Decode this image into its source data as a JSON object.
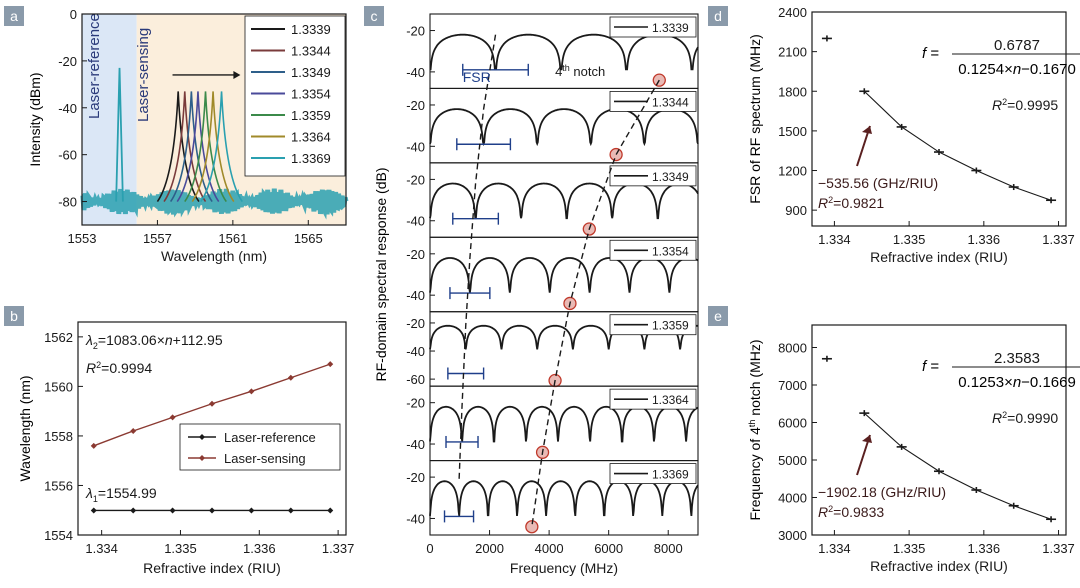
{
  "colors": {
    "panel_label_bg": "#8a9aaa",
    "ref_bg": "#dbe7f6",
    "sense_bg": "#fbeedc",
    "line_dark": "#1a1a1a",
    "fit_blue": "#2f5a8c",
    "sensing_red": "#8b3a32",
    "notch_circle": "#c0392b",
    "fsr_arrow": "#1f3f8a",
    "arrow_annot": "#5a2020"
  },
  "chart_data": [
    {
      "id": "a",
      "type": "line",
      "panel_label": "a",
      "xlabel": "Wavelength (nm)",
      "ylabel": "Intensity (dBm)",
      "xlim": [
        1553,
        1567
      ],
      "ylim": [
        -90,
        0
      ],
      "xticks": [
        1553,
        1557,
        1561,
        1565
      ],
      "yticks": [
        0,
        -20,
        -40,
        -60,
        -80
      ],
      "region_labels": [
        "Laser-reference",
        "Laser-sensing"
      ],
      "reference_peak": {
        "x": 1554.99,
        "y": -23
      },
      "noise_floor": -80,
      "legend": [
        {
          "name": "1.3339",
          "color": "#1a1a1a",
          "peak_x": 1558.1,
          "peak_y": -33
        },
        {
          "name": "1.3344",
          "color": "#7a3b3b",
          "peak_x": 1558.45,
          "peak_y": -33
        },
        {
          "name": "1.3349",
          "color": "#2e5f8a",
          "peak_x": 1558.8,
          "peak_y": -33
        },
        {
          "name": "1.3354",
          "color": "#4a4a9a",
          "peak_x": 1559.15,
          "peak_y": -33
        },
        {
          "name": "1.3359",
          "color": "#3b8a4a",
          "peak_x": 1559.55,
          "peak_y": -33
        },
        {
          "name": "1.3364",
          "color": "#a08a2a",
          "peak_x": 1559.95,
          "peak_y": -33
        },
        {
          "name": "1.3369",
          "color": "#2aa0b0",
          "peak_x": 1560.4,
          "peak_y": -33
        }
      ]
    },
    {
      "id": "b",
      "type": "line",
      "panel_label": "b",
      "xlabel": "Refractive index (RIU)",
      "ylabel": "Wavelength (nm)",
      "xlim": [
        1.3337,
        1.3371
      ],
      "ylim": [
        1554,
        1562.6
      ],
      "xticks": [
        "1.334",
        "1.335",
        "1.336",
        "1.337"
      ],
      "xtick_values": [
        1.334,
        1.335,
        1.336,
        1.337
      ],
      "yticks": [
        1554,
        1556,
        1558,
        1560,
        1562
      ],
      "x": [
        1.3339,
        1.3344,
        1.3349,
        1.3354,
        1.3359,
        1.3364,
        1.3369
      ],
      "series": [
        {
          "name": "Laser-reference",
          "values": [
            1554.99,
            1554.99,
            1554.99,
            1554.99,
            1554.99,
            1554.99,
            1554.99
          ],
          "color": "#1a1a1a"
        },
        {
          "name": "Laser-sensing",
          "values": [
            1557.6,
            1558.2,
            1558.75,
            1559.3,
            1559.8,
            1560.35,
            1560.9
          ],
          "color": "#8b3a32"
        }
      ],
      "annotations": {
        "fit_sensing": "λ2=1083.06×n+112.95",
        "r2_sensing": "R2=0.9994",
        "fit_reference": "λ1=1554.99"
      }
    },
    {
      "id": "c",
      "type": "line",
      "panel_label": "c",
      "xlabel": "Frequency (MHz)",
      "ylabel": "RF-domain spectral response (dB)",
      "xlim": [
        0,
        9000
      ],
      "xticks": [
        0,
        2000,
        4000,
        6000,
        8000
      ],
      "fsr_label": "FSR",
      "notch_label": "4th notch",
      "subplots": [
        {
          "name": "1.3339",
          "fsr": 2200,
          "notch4": 7700,
          "ylim": [
            -48,
            -12
          ],
          "yticks": [
            -20,
            -40
          ]
        },
        {
          "name": "1.3344",
          "fsr": 1800,
          "notch4": 6250,
          "ylim": [
            -48,
            -12
          ],
          "yticks": [
            -20,
            -40
          ]
        },
        {
          "name": "1.3349",
          "fsr": 1530,
          "notch4": 5350,
          "ylim": [
            -48,
            -12
          ],
          "yticks": [
            -20,
            -40
          ]
        },
        {
          "name": "1.3354",
          "fsr": 1340,
          "notch4": 4700,
          "ylim": [
            -48,
            -12
          ],
          "yticks": [
            -20,
            -40
          ]
        },
        {
          "name": "1.3359",
          "fsr": 1200,
          "notch4": 4200,
          "ylim": [
            -65,
            -12
          ],
          "yticks": [
            -20,
            -40,
            -60
          ]
        },
        {
          "name": "1.3364",
          "fsr": 1075,
          "notch4": 3780,
          "ylim": [
            -48,
            -12
          ],
          "yticks": [
            -20,
            -40
          ]
        },
        {
          "name": "1.3369",
          "fsr": 975,
          "notch4": 3420,
          "ylim": [
            -48,
            -12
          ],
          "yticks": [
            -20,
            -40
          ]
        }
      ]
    },
    {
      "id": "d",
      "type": "scatter",
      "panel_label": "d",
      "xlabel": "Refractive index (RIU)",
      "ylabel": "FSR of RF spectrum (MHz)",
      "xlim": [
        1.3337,
        1.3371
      ],
      "ylim": [
        780,
        2400
      ],
      "xticks": [
        "1.334",
        "1.335",
        "1.336",
        "1.337"
      ],
      "xtick_values": [
        1.334,
        1.335,
        1.336,
        1.337
      ],
      "yticks": [
        900,
        1200,
        1500,
        1800,
        2100,
        2400
      ],
      "x": [
        1.3339,
        1.3344,
        1.3349,
        1.3354,
        1.3359,
        1.3364,
        1.3369
      ],
      "values": [
        2200,
        1800,
        1530,
        1340,
        1200,
        1075,
        975
      ],
      "fit": {
        "a": 0.6787,
        "b": 0.1254,
        "c": 0.167
      },
      "formula": {
        "lhs": "f =",
        "numerator": "0.6787",
        "denominator": "0.1254×n−0.1670",
        "r2": "R2=0.9995"
      },
      "linear": {
        "slope_label": "−535.56 (GHz/RIU)",
        "r2": "R2=0.9821"
      }
    },
    {
      "id": "e",
      "type": "scatter",
      "panel_label": "e",
      "xlabel": "Refractive index (RIU)",
      "ylabel": "Frequency of 4th notch (MHz)",
      "xlim": [
        1.3337,
        1.3371
      ],
      "ylim": [
        3000,
        8600
      ],
      "xticks": [
        "1.334",
        "1.335",
        "1.336",
        "1.337"
      ],
      "xtick_values": [
        1.334,
        1.335,
        1.336,
        1.337
      ],
      "yticks": [
        3000,
        4000,
        5000,
        6000,
        7000,
        8000
      ],
      "x": [
        1.3339,
        1.3344,
        1.3349,
        1.3354,
        1.3359,
        1.3364,
        1.3369
      ],
      "values": [
        7700,
        6250,
        5350,
        4700,
        4200,
        3780,
        3420
      ],
      "fit": {
        "a": 2.3583,
        "b": 0.1253,
        "c": 0.1669
      },
      "formula": {
        "lhs": "f =",
        "numerator": "2.3583",
        "denominator": "0.1253×n−0.1669",
        "r2": "R2=0.9990"
      },
      "linear": {
        "slope_label": "−1902.18 (GHz/RIU)",
        "r2": "R2=0.9833"
      }
    }
  ]
}
